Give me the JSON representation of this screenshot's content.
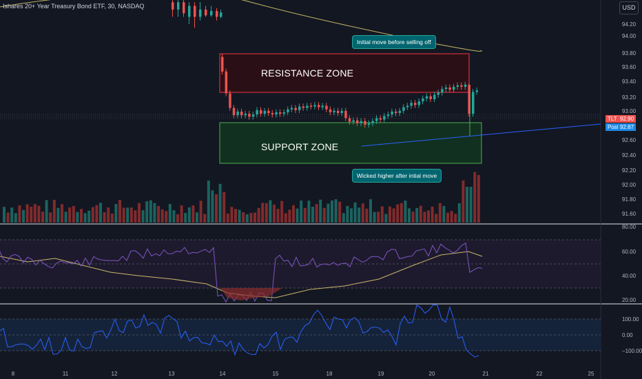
{
  "header": {
    "title": "Ishares 20+ Year Treasury Bond ETF, 30, NASDAQ",
    "currency": "USD"
  },
  "price_axis": {
    "ticks": [
      "94.20",
      "94.00",
      "93.80",
      "93.60",
      "93.40",
      "93.20",
      "93.00",
      "92.60",
      "92.40",
      "92.20",
      "92.00",
      "91.80",
      "91.60"
    ],
    "symbol_tag": "TLT",
    "last_price": "92.90",
    "post_tag": "Post",
    "post_price": "92.87"
  },
  "zones": {
    "resistance_label": "RESISTANCE ZONE",
    "support_label": "SUPPORT ZONE"
  },
  "annotations": {
    "top": "Initial move before selling off",
    "bottom": "Wicked higher after intial move"
  },
  "rsi_panel": {
    "ticks": [
      "80.00",
      "60.00",
      "40.00",
      "20.00"
    ]
  },
  "cci_panel": {
    "ticks": [
      "100.00",
      "0.00",
      "−100.00"
    ]
  },
  "time_axis": {
    "ticks": [
      "8",
      "11",
      "12",
      "13",
      "14",
      "15",
      "18",
      "19",
      "20",
      "21",
      "22",
      "25"
    ]
  },
  "colors": {
    "background": "#131722",
    "up": "#26a69a",
    "down": "#ef5350",
    "resistance_border": "#f23645",
    "support_border": "#4caf50",
    "moving_average": "#c9b86b",
    "trendline": "#2962ff",
    "rsi_line": "#7e57c2",
    "cci_line": "#2962ff"
  }
}
